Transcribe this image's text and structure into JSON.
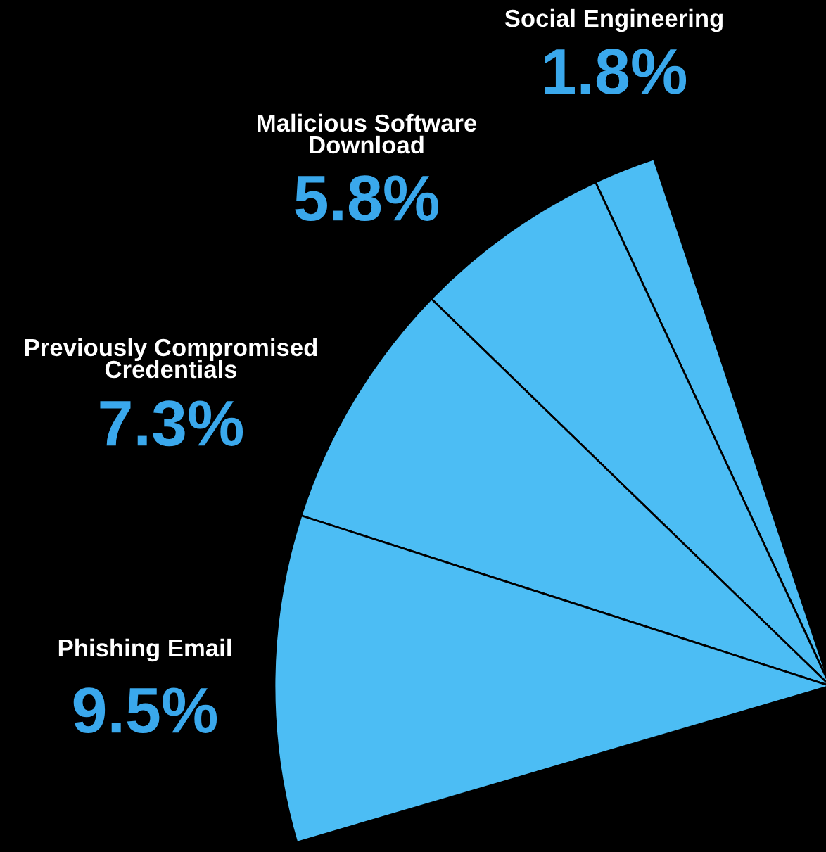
{
  "chart_data": {
    "type": "pie",
    "categories": [
      "Social Engineering",
      "Malicious Software Download",
      "Previously Compromised Credentials",
      "Phishing Email"
    ],
    "values": [
      1.8,
      5.8,
      7.3,
      9.5
    ],
    "colors": [
      "#4cbdf4",
      "#4cbdf4",
      "#4cbdf4",
      "#4cbdf4"
    ],
    "value_labels": [
      "1.8%",
      "5.8%",
      "7.3%",
      "9.5%"
    ],
    "legend": false
  }
}
